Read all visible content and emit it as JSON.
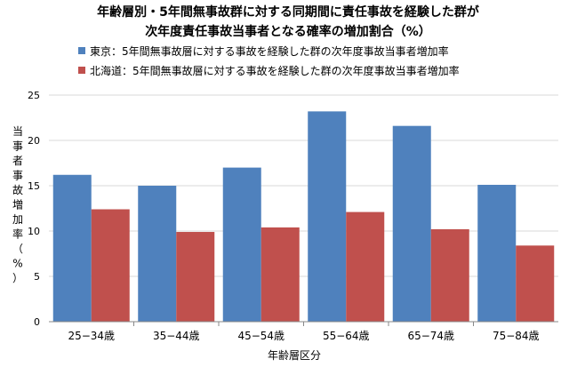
{
  "chart_data": {
    "type": "bar",
    "title": "年齢層別・5年間無事故群に対する同期間に責任事故を経験した群が",
    "subtitle": "次年度責任事故当事者となる確率の増加割合（%）",
    "xlabel": "年齢層区分",
    "ylabel": "当事者事故増加率（%）",
    "ylim": [
      0,
      25
    ],
    "yticks": [
      0,
      5,
      10,
      15,
      20,
      25
    ],
    "grid": true,
    "legend_position": "top",
    "categories": [
      "25−34歳",
      "35−44歳",
      "45−54歳",
      "55−64歳",
      "65−74歳",
      "75−84歳"
    ],
    "series": [
      {
        "name": "東京：5年間無事故層に対する事故を経験した群の次年度事故当事者増加率",
        "color": "#4f81bd",
        "values": [
          16.2,
          15.0,
          17.0,
          23.2,
          21.6,
          15.1
        ]
      },
      {
        "name": "北海道：5年間無事故層に対する事故を経験した群の次年度事故当事者増加率",
        "color": "#c0504d",
        "values": [
          12.4,
          9.9,
          10.4,
          12.1,
          10.2,
          8.4
        ]
      }
    ]
  }
}
